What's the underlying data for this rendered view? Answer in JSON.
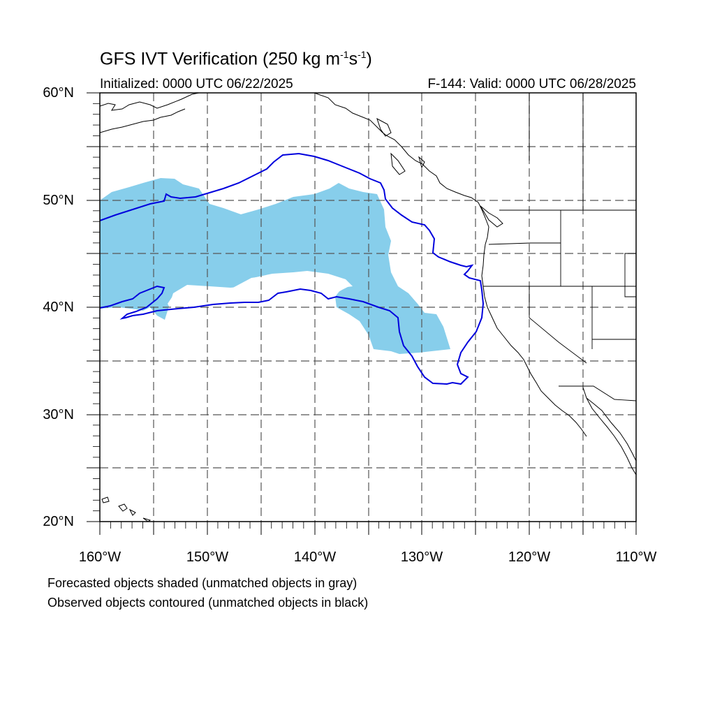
{
  "title": {
    "main": "GFS IVT Verification (250 kg m",
    "sup1": "-1",
    "mid": "s",
    "sup2": "-1",
    "end": ")"
  },
  "initialized": "Initialized: 0000 UTC 06/22/2025",
  "valid": "F-144: Valid: 0000 UTC 06/28/2025",
  "lat_labels": [
    "60°N",
    "50°N",
    "40°N",
    "30°N",
    "20°N"
  ],
  "lon_labels": [
    "160°W",
    "150°W",
    "140°W",
    "130°W",
    "120°W",
    "110°W"
  ],
  "captions": [
    "Forecasted objects shaded (unmatched objects in gray)",
    "Observed objects contoured (unmatched objects in black)"
  ],
  "colors": {
    "forecast_fill": "#87ceeb",
    "observed_contour": "#0000dd",
    "grid": "#555555",
    "coastline": "#000000"
  },
  "map": {
    "lat_range": [
      20,
      60
    ],
    "lon_range": [
      -160,
      -110
    ],
    "grid": "dashed every 5 degrees"
  }
}
